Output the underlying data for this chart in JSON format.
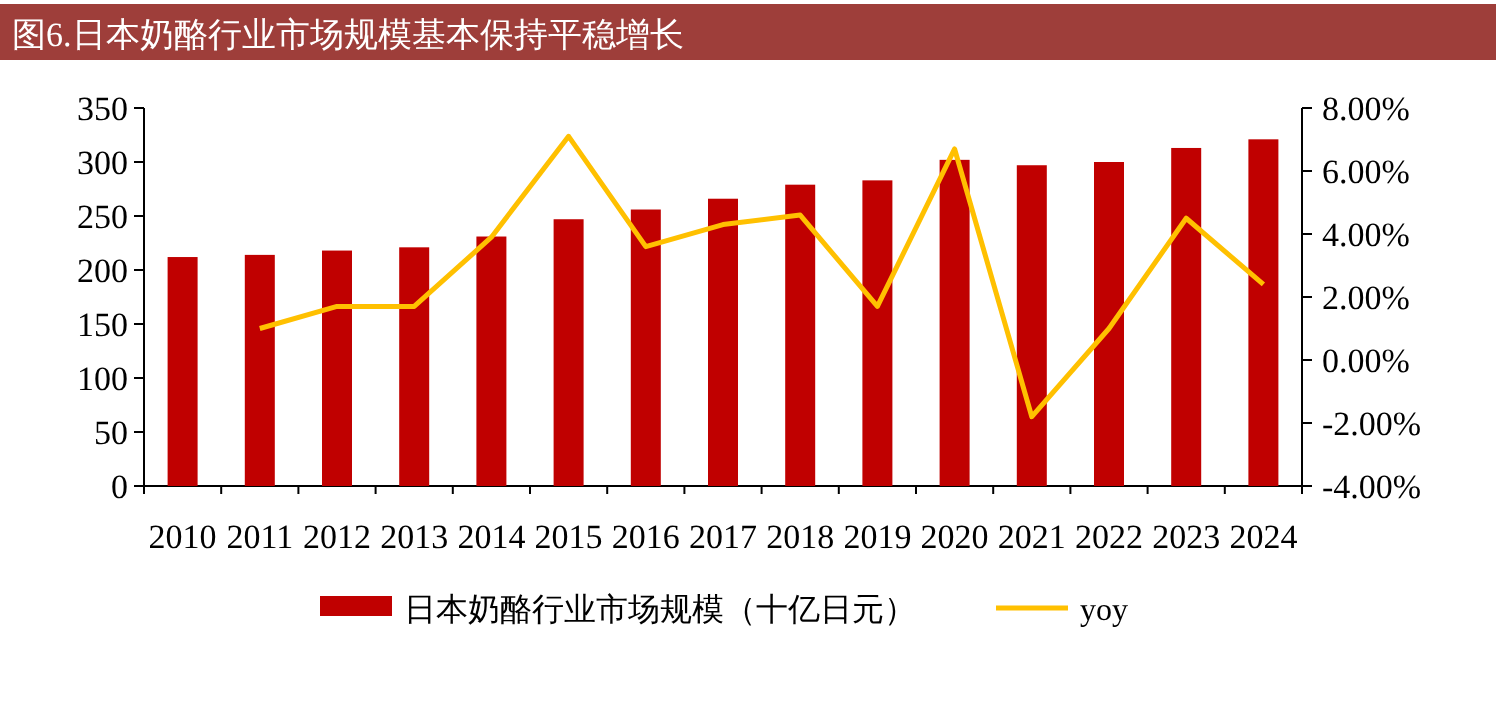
{
  "chart_data": {
    "type": "bar",
    "title": "图6.日本奶酪行业市场规模基本保持平稳增长",
    "categories": [
      "2010",
      "2011",
      "2012",
      "2013",
      "2014",
      "2015",
      "2016",
      "2017",
      "2018",
      "2019",
      "2020",
      "2021",
      "2022",
      "2023",
      "2024"
    ],
    "series": [
      {
        "name": "日本奶酪行业市场规模（十亿日元）",
        "color": "#c00000",
        "values": [
          212,
          214,
          218,
          221,
          231,
          247,
          256,
          266,
          279,
          283,
          302,
          297,
          300,
          313,
          321
        ]
      },
      {
        "name": "yoy",
        "type": "line",
        "axis": "y2",
        "color": "#ffc000",
        "values": [
          null,
          1.0,
          1.7,
          1.7,
          3.9,
          7.1,
          3.6,
          4.3,
          4.6,
          1.7,
          6.7,
          -1.8,
          1.0,
          4.5,
          2.4
        ]
      }
    ],
    "ylim": [
      0,
      350
    ],
    "yticks": [
      0,
      50,
      100,
      150,
      200,
      250,
      300,
      350
    ],
    "y2lim": [
      -4,
      8
    ],
    "y2ticks": [
      {
        "value": -4,
        "label": "-4.00%"
      },
      {
        "value": -2,
        "label": "-2.00%"
      },
      {
        "value": 0,
        "label": "0.00%"
      },
      {
        "value": 2,
        "label": "2.00%"
      },
      {
        "value": 4,
        "label": "4.00%"
      },
      {
        "value": 6,
        "label": "6.00%"
      },
      {
        "value": 8,
        "label": "8.00%"
      }
    ],
    "legend": "bottom"
  }
}
